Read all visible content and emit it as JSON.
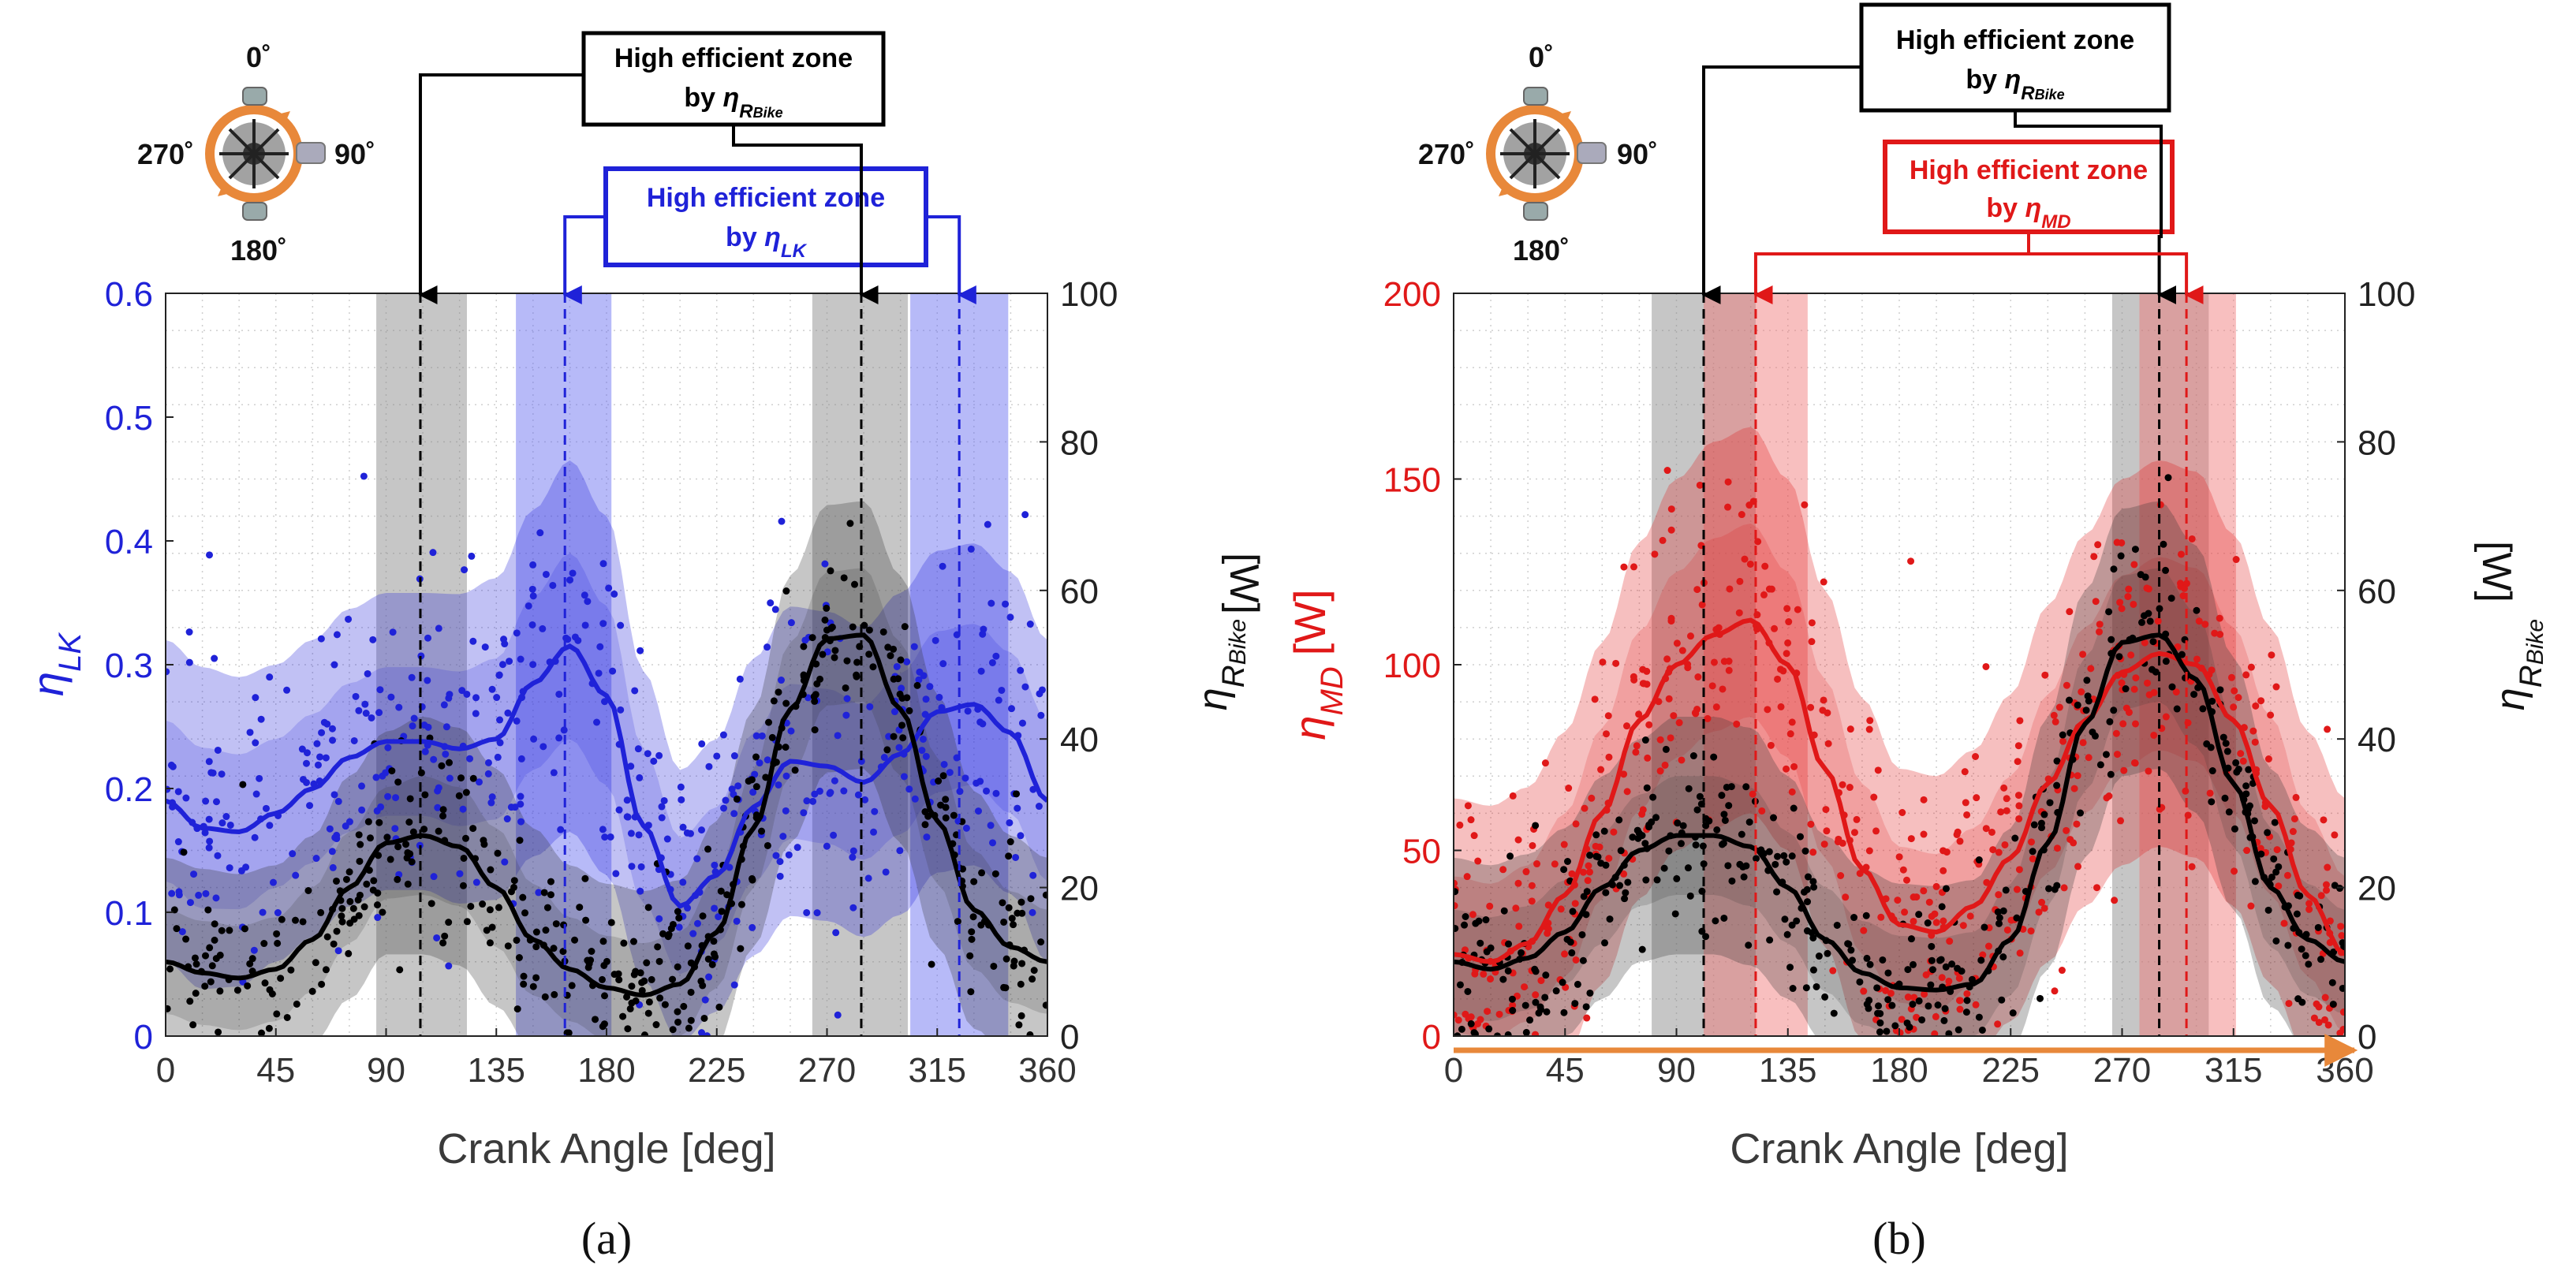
{
  "colors": {
    "lk": "#1f22d8",
    "md": "#e01818",
    "bike": "#000000",
    "arrow_orange": "#e8883a"
  },
  "chart_data": [
    {
      "panel": "a",
      "type": "scatter",
      "panel_label": "(a)",
      "xlabel": "Crank Angle [deg]",
      "xlim": [
        0,
        360
      ],
      "xticks": [
        0,
        45,
        90,
        135,
        180,
        225,
        270,
        315,
        360
      ],
      "left_axis": {
        "label_main": "η",
        "label_sub": "LK",
        "label_unit": "",
        "ylim": [
          0,
          0.6
        ],
        "ticks": [
          0,
          0.1,
          0.2,
          0.3,
          0.4,
          0.5,
          0.6
        ],
        "tick_labels": [
          "0",
          "0.1",
          "0.2",
          "0.3",
          "0.4",
          "0.5",
          "0.6"
        ],
        "color": "#1f22d8"
      },
      "right_axis": {
        "label_main": "η",
        "label_sub": "RBike",
        "label_sub_a": "R",
        "label_sub_b": "Bike",
        "label_unit": "[W]",
        "ylim": [
          0,
          100
        ],
        "ticks": [
          0,
          20,
          40,
          60,
          80,
          100
        ],
        "color": "#000000"
      },
      "series": [
        {
          "name": "η_LK",
          "axis": "left",
          "color": "#1f22d8",
          "fit_x": [
            0,
            15,
            30,
            45,
            60,
            75,
            90,
            105,
            120,
            135,
            150,
            165,
            180,
            195,
            210,
            225,
            240,
            255,
            270,
            285,
            300,
            315,
            330,
            345,
            360
          ],
          "fit_y": [
            0.19,
            0.168,
            0.165,
            0.18,
            0.2,
            0.225,
            0.238,
            0.238,
            0.232,
            0.24,
            0.285,
            0.315,
            0.275,
            0.17,
            0.105,
            0.13,
            0.185,
            0.222,
            0.218,
            0.205,
            0.228,
            0.262,
            0.268,
            0.245,
            0.19
          ],
          "band_half_width": [
            0.13,
            0.13,
            0.125,
            0.12,
            0.12,
            0.12,
            0.12,
            0.12,
            0.125,
            0.13,
            0.14,
            0.15,
            0.145,
            0.125,
            0.11,
            0.11,
            0.12,
            0.125,
            0.125,
            0.125,
            0.13,
            0.13,
            0.13,
            0.13,
            0.13
          ],
          "points": {
            "count": 480,
            "seed": 7,
            "spread": 0.075
          }
        },
        {
          "name": "η_RBike",
          "axis": "right",
          "color": "#000000",
          "fit_x": [
            0,
            15,
            30,
            45,
            60,
            75,
            90,
            105,
            120,
            135,
            150,
            165,
            180,
            195,
            210,
            225,
            240,
            255,
            270,
            285,
            300,
            315,
            330,
            345,
            360
          ],
          "fit_y": [
            10,
            8.5,
            7.8,
            9,
            13,
            20,
            26,
            27,
            25.5,
            20,
            13,
            9,
            6.5,
            5.5,
            7,
            14,
            28,
            44,
            53.5,
            54,
            44,
            29,
            17,
            12,
            10
          ],
          "band_half_width": [
            14,
            14,
            14,
            14,
            14,
            15,
            15,
            16,
            16,
            16,
            15,
            14,
            14,
            14,
            14,
            15,
            16,
            18,
            18,
            18,
            18,
            17,
            16,
            15,
            14
          ],
          "points": {
            "count": 420,
            "seed": 13,
            "spread": 7
          }
        }
      ],
      "high_efficient_zones": [
        {
          "by": "ηRBike",
          "color": "#808080",
          "center": 104,
          "range": [
            86,
            123
          ]
        },
        {
          "by": "ηLK",
          "color": "#5f66f0",
          "center": 163,
          "range": [
            143,
            182
          ]
        },
        {
          "by": "ηRBike",
          "color": "#808080",
          "center": 284,
          "range": [
            264,
            303
          ]
        },
        {
          "by": "ηLK",
          "color": "#5f66f0",
          "center": 324,
          "range": [
            304,
            344
          ]
        }
      ],
      "callouts": [
        {
          "line1": "High efficient zone",
          "line2_prefix": "by ",
          "eta": "η",
          "sub": "R",
          "subsub": "Bike",
          "color": "#000000"
        },
        {
          "line1": "High efficient zone",
          "line2_prefix": "by ",
          "eta": "η",
          "sub": "LK",
          "subsub": "",
          "color": "#1f22d8"
        }
      ],
      "compass": {
        "top": "0˚",
        "right": "90˚",
        "bottom": "180˚",
        "left": "270˚"
      }
    },
    {
      "panel": "b",
      "type": "scatter",
      "panel_label": "(b)",
      "xlabel": "Crank Angle [deg]",
      "xlim": [
        0,
        360
      ],
      "xticks": [
        0,
        45,
        90,
        135,
        180,
        225,
        270,
        315,
        360
      ],
      "left_axis": {
        "label_main": "η",
        "label_sub": "MD",
        "label_unit": "[W]",
        "ylim": [
          0,
          200
        ],
        "ticks": [
          0,
          50,
          100,
          150,
          200
        ],
        "tick_labels": [
          "0",
          "50",
          "100",
          "150",
          "200"
        ],
        "color": "#e01818"
      },
      "right_axis": {
        "label_main": "η",
        "label_sub": "RBike",
        "label_sub_a": "R",
        "label_sub_b": "Bike",
        "label_unit": "[W]",
        "ylim": [
          0,
          100
        ],
        "ticks": [
          0,
          20,
          40,
          60,
          80,
          100
        ],
        "color": "#000000"
      },
      "series": [
        {
          "name": "η_MD",
          "axis": "left",
          "color": "#e01818",
          "fit_x": [
            0,
            15,
            30,
            45,
            60,
            75,
            90,
            105,
            120,
            135,
            150,
            165,
            180,
            195,
            210,
            225,
            240,
            255,
            270,
            285,
            300,
            315,
            330,
            345,
            360
          ],
          "fit_y": [
            22,
            20,
            25,
            38,
            60,
            85,
            100,
            108,
            112,
            100,
            72,
            45,
            30,
            28,
            35,
            48,
            68,
            85,
            98,
            103,
            100,
            85,
            62,
            38,
            22
          ],
          "band_half_width": [
            42,
            42,
            42,
            44,
            46,
            48,
            50,
            52,
            52,
            50,
            48,
            46,
            42,
            42,
            42,
            44,
            48,
            50,
            52,
            52,
            52,
            50,
            48,
            44,
            42
          ],
          "points": {
            "count": 560,
            "seed": 21,
            "spread": 26
          }
        },
        {
          "name": "η_RBike",
          "axis": "right",
          "color": "#000000",
          "fit_x": [
            0,
            15,
            30,
            45,
            60,
            75,
            90,
            105,
            120,
            135,
            150,
            165,
            180,
            195,
            210,
            225,
            240,
            255,
            270,
            285,
            300,
            315,
            330,
            345,
            360
          ],
          "fit_y": [
            10,
            9,
            10.5,
            14,
            20,
            25,
            27,
            27,
            25.5,
            20,
            13,
            8.5,
            6.5,
            6.2,
            7,
            13,
            26,
            42,
            53,
            54,
            48,
            34,
            20,
            13,
            10
          ],
          "band_half_width": [
            14,
            14,
            14,
            14,
            15,
            15,
            16,
            16,
            16,
            15,
            14,
            14,
            14,
            14,
            14,
            15,
            17,
            18,
            18,
            18,
            18,
            17,
            16,
            15,
            14
          ],
          "points": {
            "count": 420,
            "seed": 33,
            "spread": 7
          }
        }
      ],
      "high_efficient_zones": [
        {
          "by": "ηRBike",
          "color": "#808080",
          "center": 101,
          "range": [
            80,
            122
          ]
        },
        {
          "by": "ηMD",
          "color": "#f07070",
          "center": 122,
          "range": [
            101,
            143
          ]
        },
        {
          "by": "ηRBike",
          "color": "#808080",
          "center": 285,
          "range": [
            266,
            305
          ]
        },
        {
          "by": "ηMD",
          "color": "#f07070",
          "center": 296,
          "range": [
            277,
            316
          ]
        }
      ],
      "callouts": [
        {
          "line1": "High efficient zone",
          "line2_prefix": "by ",
          "eta": "η",
          "sub": "R",
          "subsub": "Bike",
          "color": "#000000"
        },
        {
          "line1": "High efficient zone",
          "line2_prefix": "by ",
          "eta": "η",
          "sub": "MD",
          "subsub": "",
          "color": "#e01818"
        }
      ],
      "compass": {
        "top": "0˚",
        "right": "90˚",
        "bottom": "180˚",
        "left": "270˚"
      }
    }
  ]
}
